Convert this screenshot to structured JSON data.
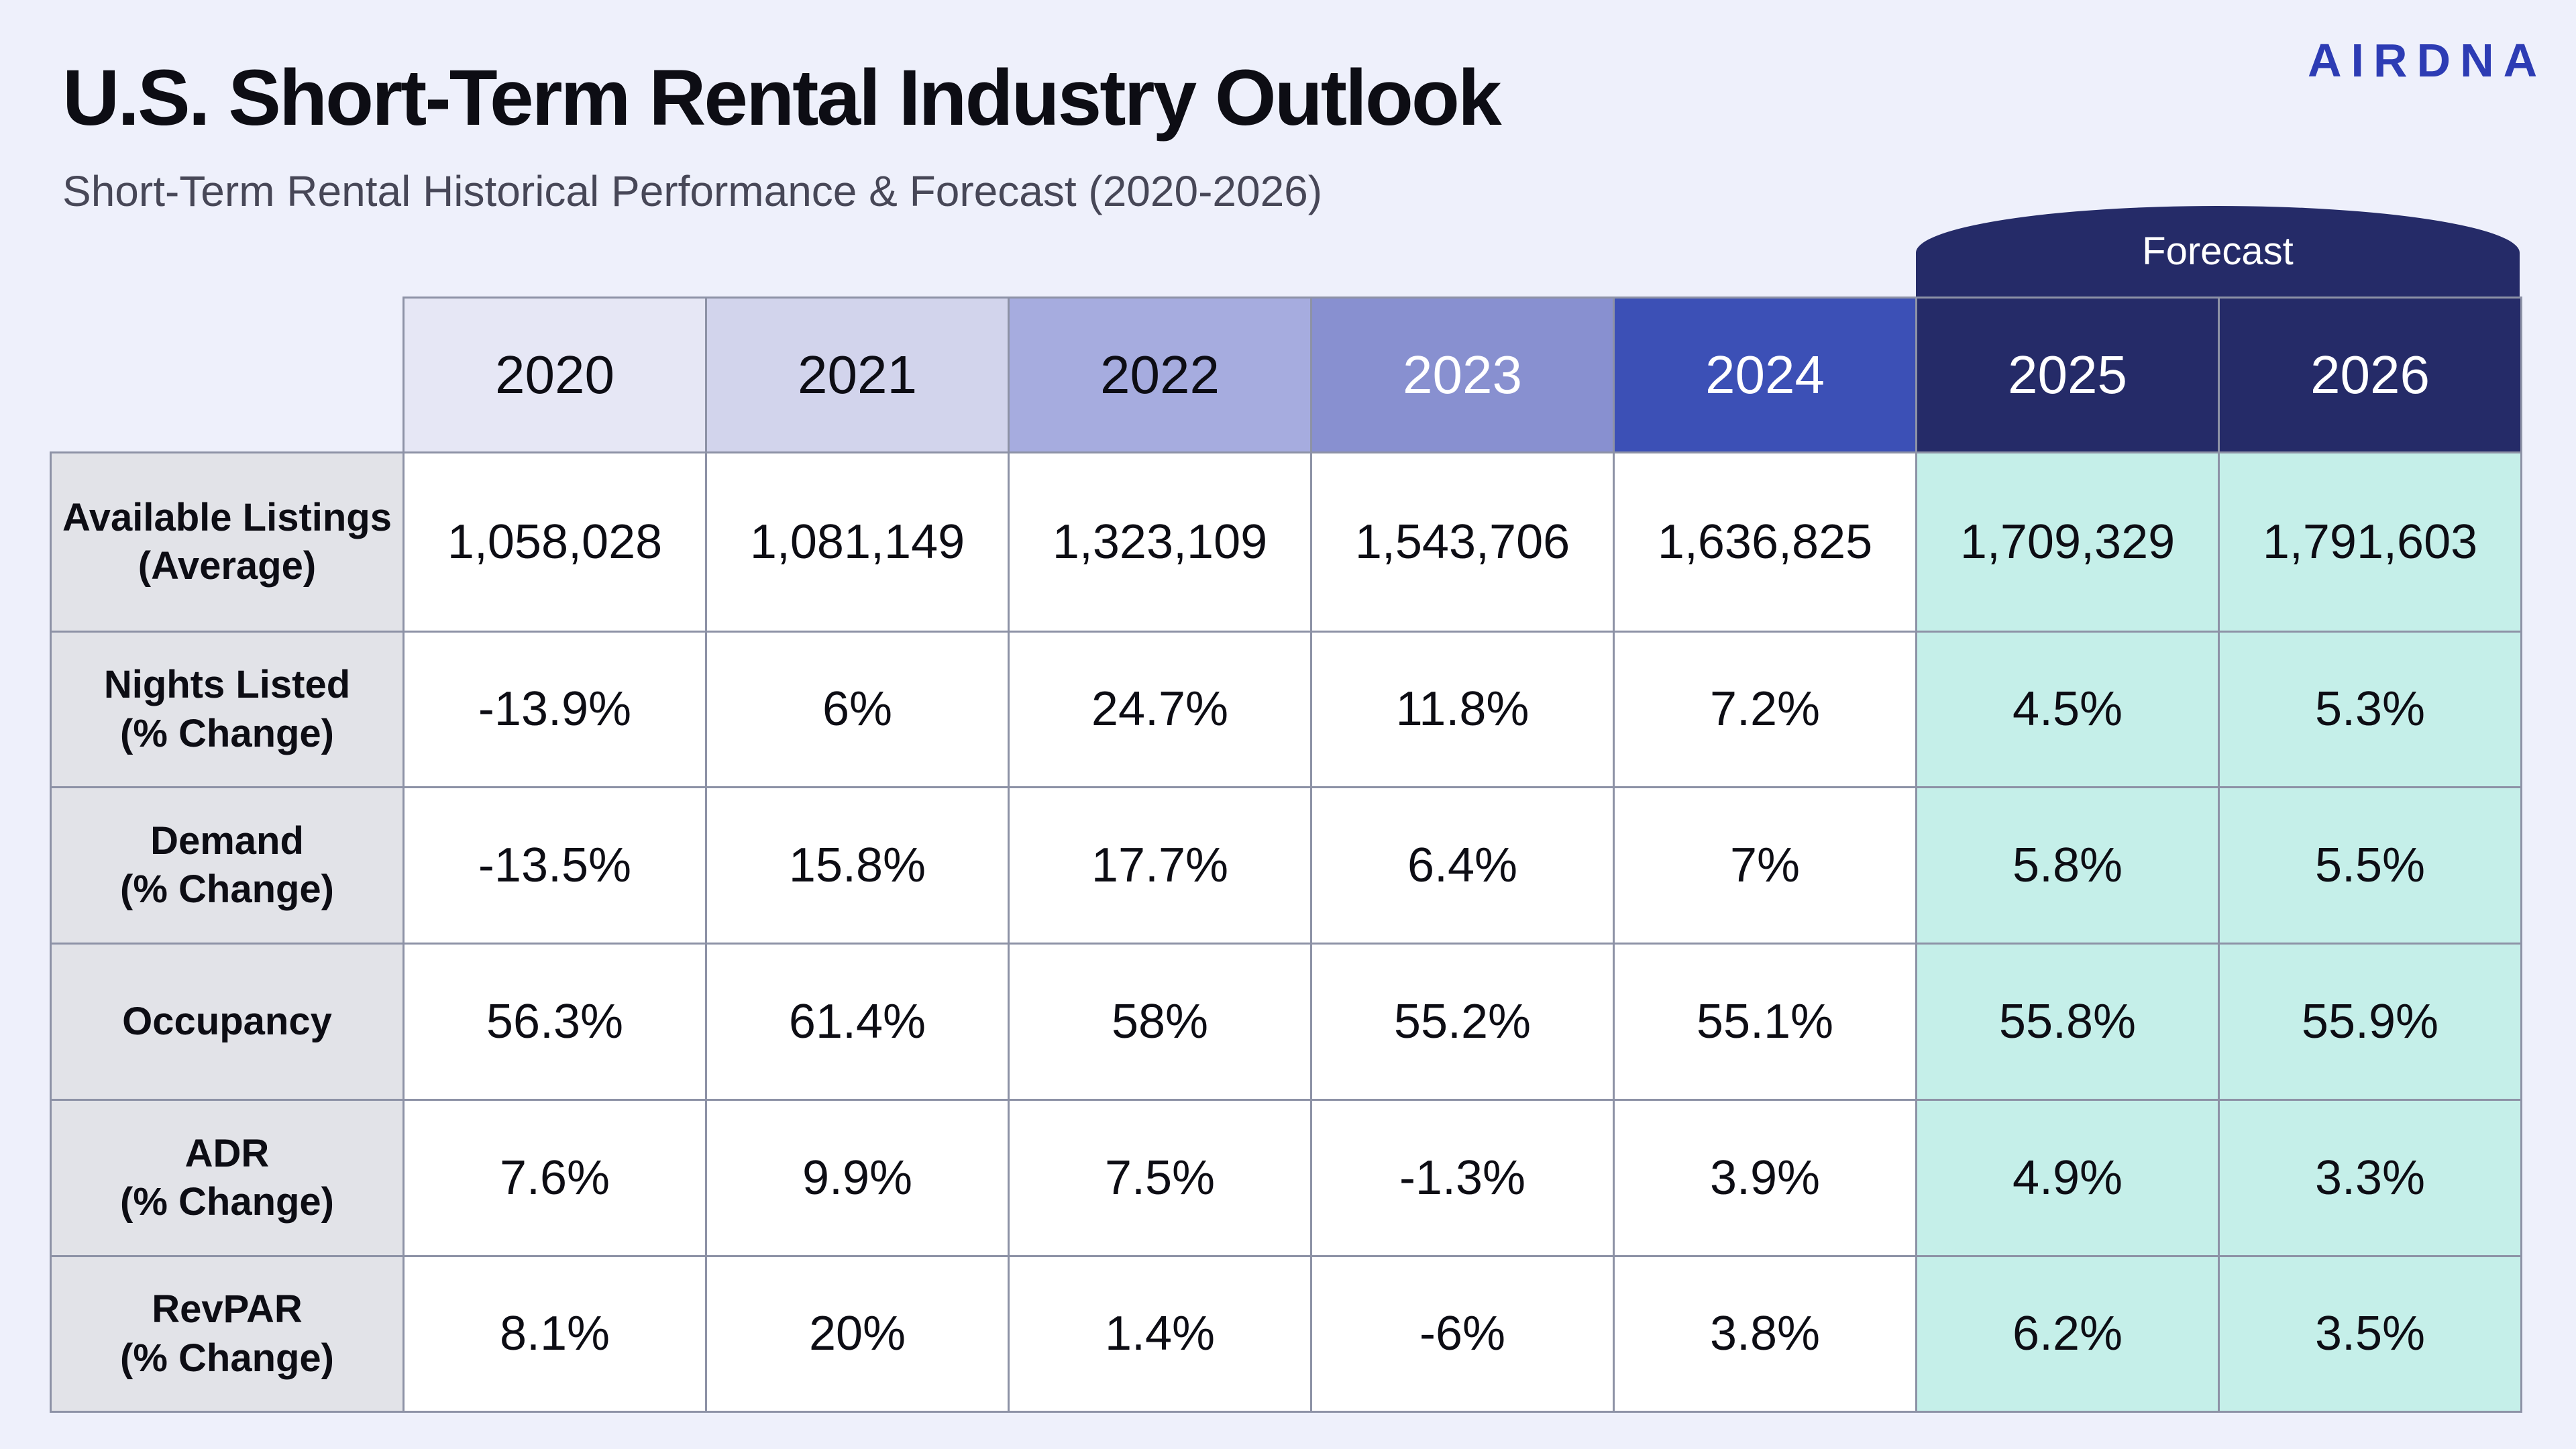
{
  "header": {
    "title": "U.S. Short-Term Rental Industry Outlook",
    "subtitle": "Short-Term Rental Historical Performance & Forecast (2020-2026)",
    "brand": "AIRDNA"
  },
  "forecast_label": "Forecast",
  "colors": {
    "background": "#eef0fb",
    "row_label_bg": "#e2e3e8",
    "forecast_cell_bg": "#c5efe9",
    "forecast_header_bg": "#252b68",
    "brand": "#2d3cb4",
    "year_header_bgs": [
      "#e6e7f5",
      "#d2d4ec",
      "#a6acdf",
      "#8890d0",
      "#3c50b6",
      "#252b68",
      "#252b68"
    ],
    "year_header_text": [
      "#0d0d14",
      "#0d0d14",
      "#0d0d14",
      "#ffffff",
      "#ffffff",
      "#ffffff",
      "#ffffff"
    ]
  },
  "chart_data": {
    "type": "table",
    "title": "U.S. Short-Term Rental Industry Outlook",
    "subtitle": "Short-Term Rental Historical Performance & Forecast (2020-2026)",
    "columns": [
      "2020",
      "2021",
      "2022",
      "2023",
      "2024",
      "2025",
      "2026"
    ],
    "forecast_columns": [
      "2025",
      "2026"
    ],
    "rows": [
      {
        "label": "Available Listings\n(Average)",
        "values": [
          "1,058,028",
          "1,081,149",
          "1,323,109",
          "1,543,706",
          "1,636,825",
          "1,709,329",
          "1,791,603"
        ]
      },
      {
        "label": "Nights Listed\n(% Change)",
        "values": [
          "-13.9%",
          "6%",
          "24.7%",
          "11.8%",
          "7.2%",
          "4.5%",
          "5.3%"
        ]
      },
      {
        "label": "Demand\n(% Change)",
        "values": [
          "-13.5%",
          "15.8%",
          "17.7%",
          "6.4%",
          "7%",
          "5.8%",
          "5.5%"
        ]
      },
      {
        "label": "Occupancy",
        "values": [
          "56.3%",
          "61.4%",
          "58%",
          "55.2%",
          "55.1%",
          "55.8%",
          "55.9%"
        ]
      },
      {
        "label": "ADR\n(% Change)",
        "values": [
          "7.6%",
          "9.9%",
          "7.5%",
          "-1.3%",
          "3.9%",
          "4.9%",
          "3.3%"
        ]
      },
      {
        "label": "RevPAR\n(% Change)",
        "values": [
          "8.1%",
          "20%",
          "1.4%",
          "-6%",
          "3.8%",
          "6.2%",
          "3.5%"
        ]
      }
    ]
  }
}
